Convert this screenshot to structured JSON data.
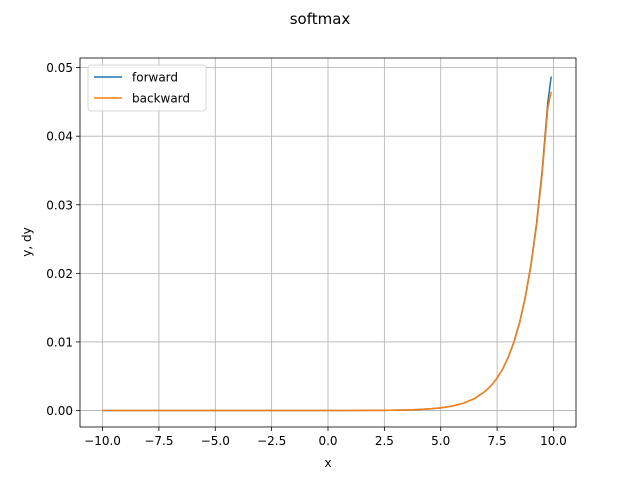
{
  "chart_data": {
    "type": "line",
    "title": "softmax",
    "xlabel": "x",
    "ylabel": "y, dy",
    "xlim": [
      -11,
      11
    ],
    "ylim": [
      -0.0024,
      0.0514
    ],
    "x_ticks": [
      -10.0,
      -7.5,
      -5.0,
      -2.5,
      0.0,
      2.5,
      5.0,
      7.5,
      10.0
    ],
    "x_tick_labels": [
      "−10.0",
      "−7.5",
      "−5.0",
      "−2.5",
      "0.0",
      "2.5",
      "5.0",
      "7.5",
      "10.0"
    ],
    "y_ticks": [
      0.0,
      0.01,
      0.02,
      0.03,
      0.04,
      0.05
    ],
    "y_tick_labels": [
      "0.00",
      "0.01",
      "0.02",
      "0.03",
      "0.04",
      "0.05"
    ],
    "grid": true,
    "legend": "upper-left",
    "colors": {
      "forward": "#1f77b4",
      "backward": "#ff7f0e",
      "grid": "#b0b0b0",
      "axes": "#000000"
    },
    "x": [
      -10.0,
      -9.0,
      -8.0,
      -7.0,
      -6.0,
      -5.0,
      -4.0,
      -3.0,
      -2.0,
      -1.0,
      0.0,
      1.0,
      2.0,
      2.5,
      3.0,
      3.5,
      4.0,
      4.5,
      5.0,
      5.5,
      6.0,
      6.5,
      7.0,
      7.25,
      7.5,
      7.75,
      8.0,
      8.25,
      8.5,
      8.75,
      9.0,
      9.25,
      9.5,
      9.75,
      9.9
    ],
    "series": [
      {
        "name": "forward",
        "values": [
          0.0,
          0.0,
          0.0,
          0.0,
          0.0,
          0.0,
          0.0,
          0.0,
          0.0,
          0.0,
          0.0,
          0.0,
          1.9e-05,
          3.2e-05,
          5.3e-05,
          8.7e-05,
          0.000143,
          0.000236,
          0.000389,
          0.000641,
          0.001057,
          0.001742,
          0.002872,
          0.003688,
          0.004736,
          0.006081,
          0.007808,
          0.010026,
          0.012873,
          0.016529,
          0.021224,
          0.027252,
          0.034993,
          0.044932,
          0.0487
        ]
      },
      {
        "name": "backward",
        "values": [
          0.0,
          0.0,
          0.0,
          0.0,
          0.0,
          0.0,
          0.0,
          0.0,
          0.0,
          0.0,
          0.0,
          0.0,
          1.9e-05,
          3.2e-05,
          5.3e-05,
          8.7e-05,
          0.000143,
          0.000236,
          0.000389,
          0.000641,
          0.001056,
          0.001739,
          0.002864,
          0.003675,
          0.004715,
          0.006048,
          0.007758,
          0.009951,
          0.012761,
          0.016362,
          0.020974,
          0.026877,
          0.034426,
          0.044063,
          0.0465
        ]
      }
    ]
  }
}
